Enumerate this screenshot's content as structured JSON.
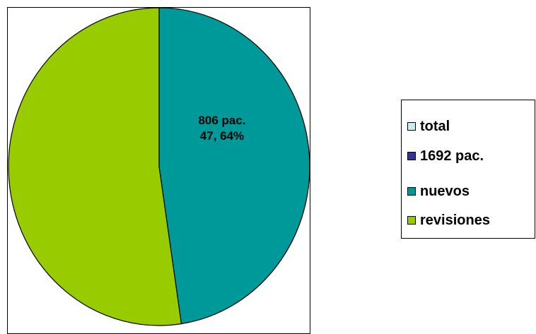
{
  "chart_data": {
    "type": "pie",
    "title": "",
    "slices": [
      {
        "name": "nuevos",
        "value": 47.64,
        "color": "#009999"
      },
      {
        "name": "revisiones",
        "value": 52.36,
        "color": "#99cc00"
      }
    ],
    "slice_label": {
      "line1": "806 pac.",
      "line2": "47, 64%"
    },
    "legend": {
      "placement": "right",
      "entries": [
        {
          "label": "total",
          "color": "#ccecf0"
        },
        {
          "label": "1692 pac.",
          "color": "#333399"
        },
        {
          "label": "nuevos",
          "color": "#009999"
        },
        {
          "label": "revisiones",
          "color": "#99cc00"
        }
      ]
    }
  }
}
